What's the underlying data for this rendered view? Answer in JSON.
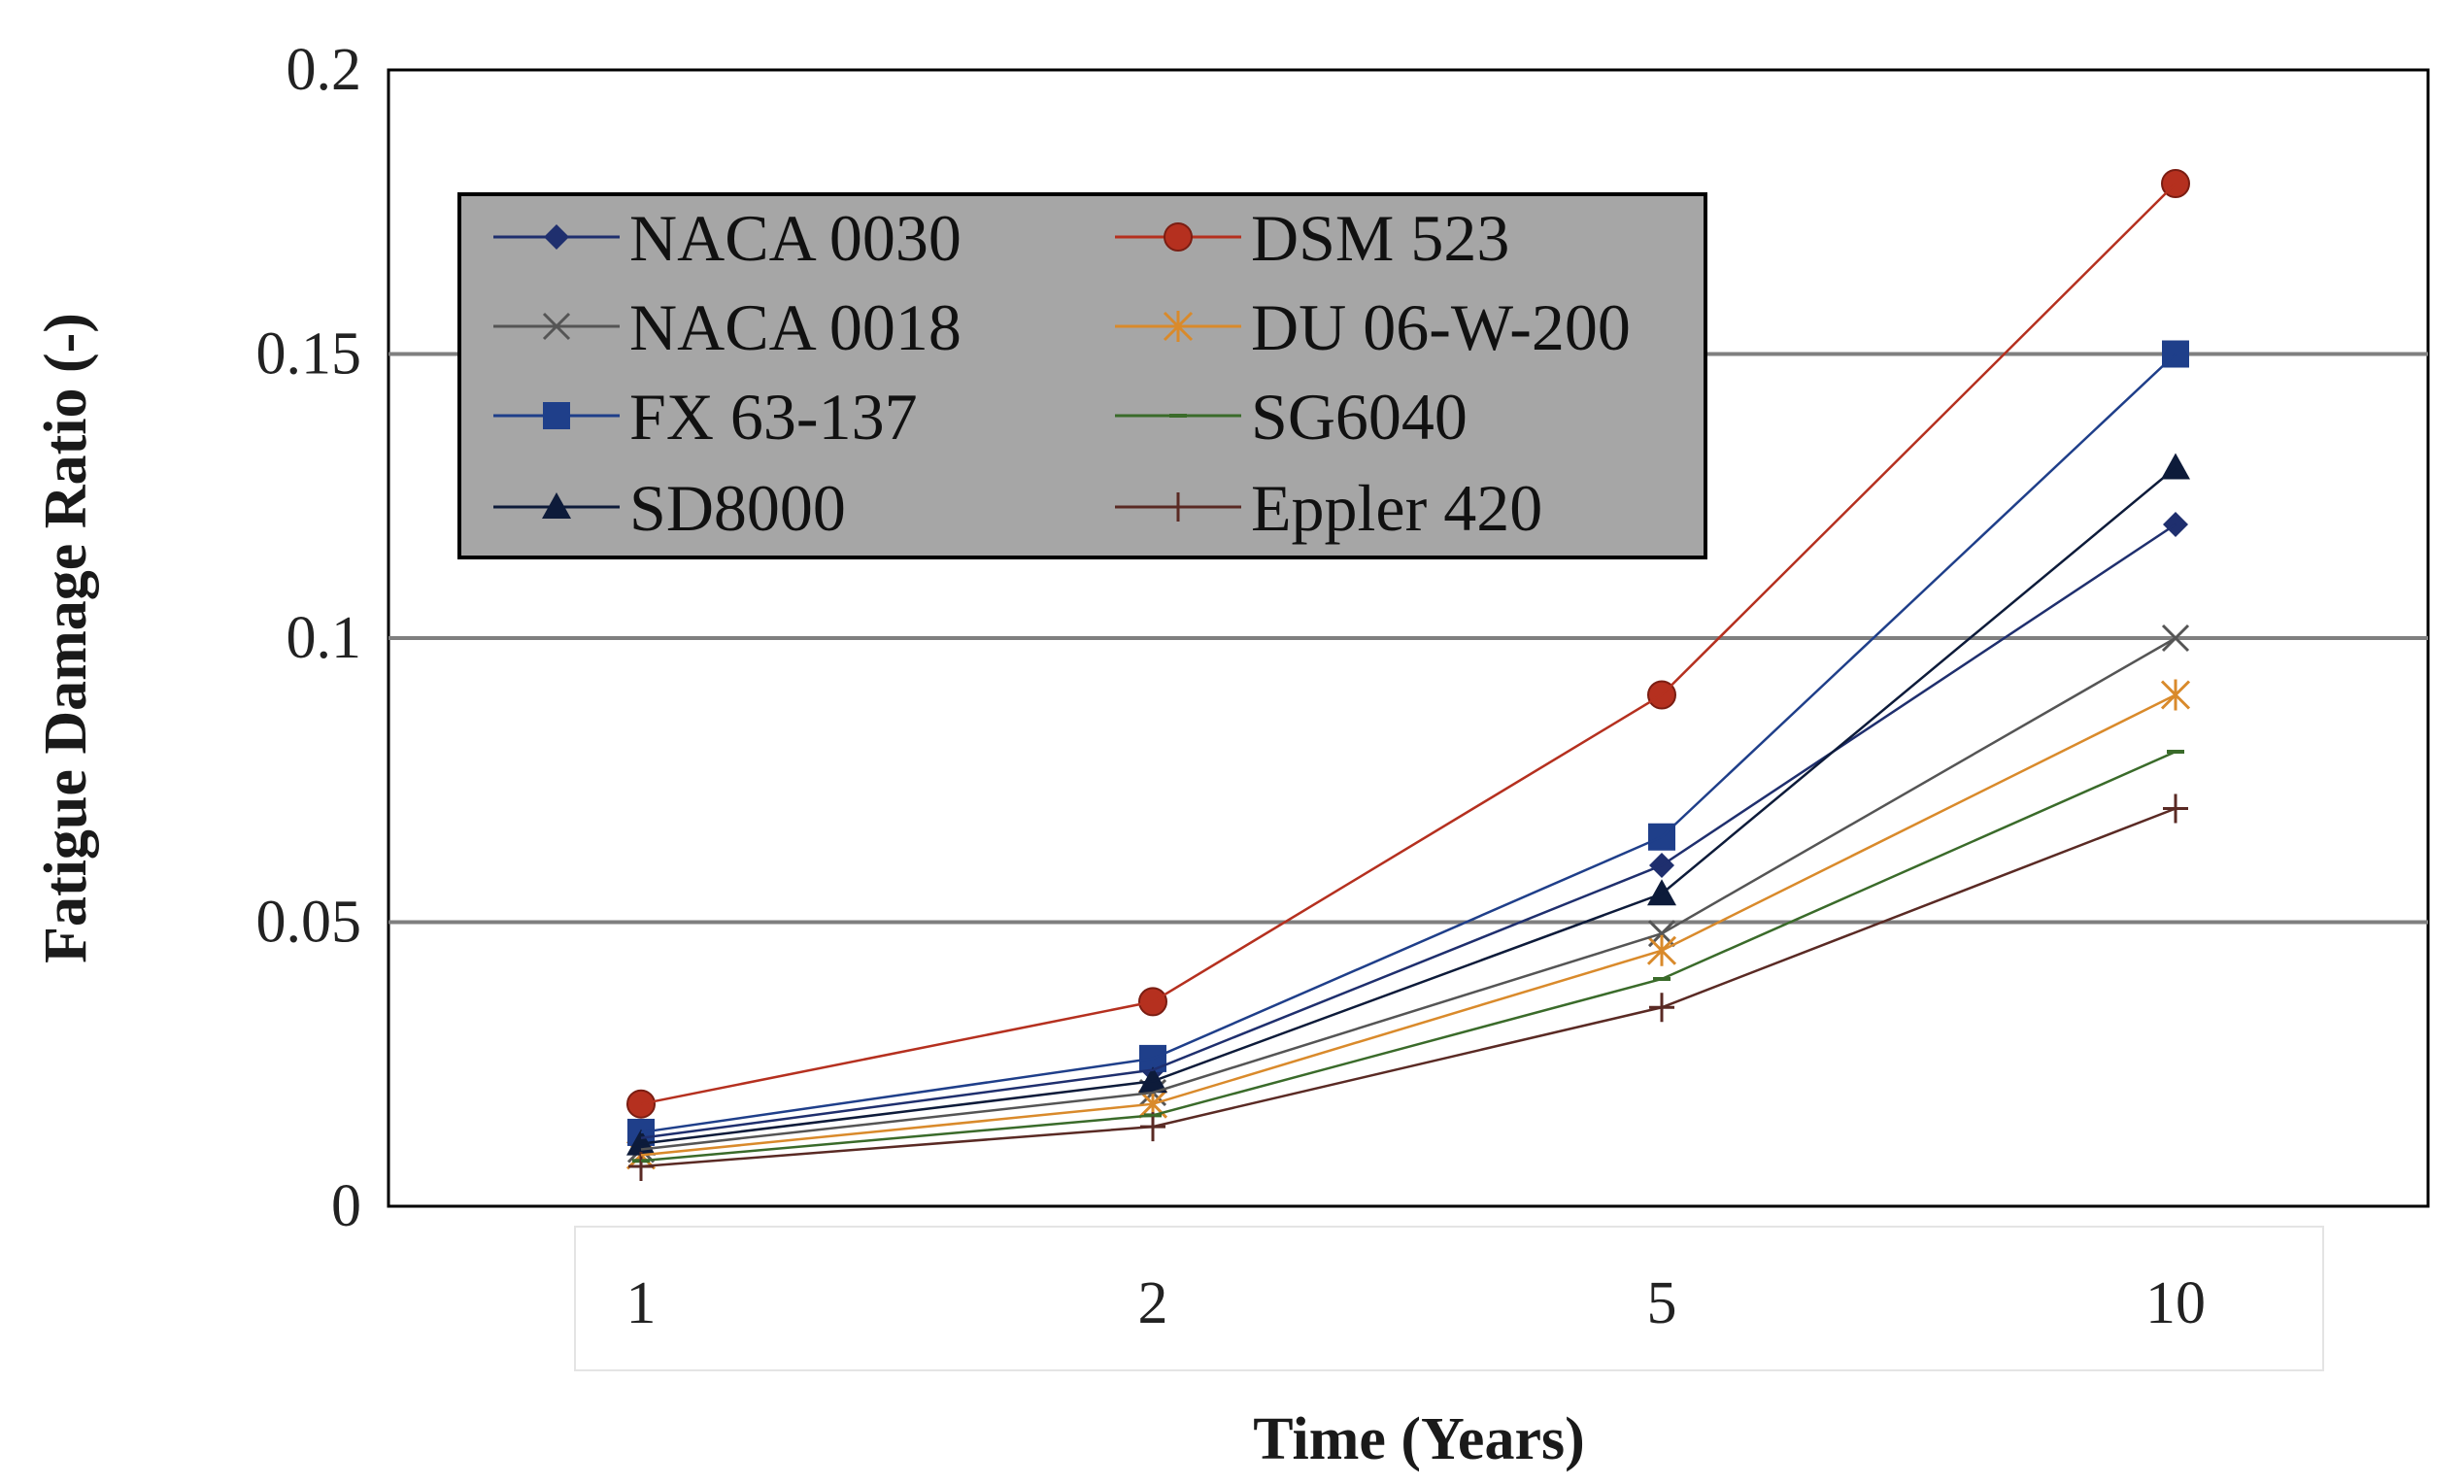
{
  "chart_data": {
    "type": "line",
    "title": "",
    "xlabel": "Time (Years)",
    "ylabel": "Fatigue Damage Ratio (-)",
    "categories": [
      "1",
      "2",
      "5",
      "10"
    ],
    "ylim": [
      0,
      0.2
    ],
    "yticks": [
      "0",
      "0.05",
      "0.1",
      "0.15",
      "0.2"
    ],
    "grid": "horizontal",
    "legend_position": "top-left",
    "series": [
      {
        "name": "NACA 0030",
        "marker": "diamond",
        "color": "#1f2f6e",
        "values": [
          0.012,
          0.024,
          0.06,
          0.12
        ]
      },
      {
        "name": "DSM 523",
        "marker": "circle",
        "color": "#b5301f",
        "values": [
          0.018,
          0.036,
          0.09,
          0.18
        ]
      },
      {
        "name": "NACA 0018",
        "marker": "x",
        "color": "#555555",
        "values": [
          0.01,
          0.02,
          0.048,
          0.1
        ]
      },
      {
        "name": "DU 06-W-200",
        "marker": "asterisk",
        "color": "#d98a2b",
        "values": [
          0.009,
          0.018,
          0.045,
          0.09
        ]
      },
      {
        "name": "FX 63-137",
        "marker": "square",
        "color": "#1f3f8a",
        "values": [
          0.013,
          0.026,
          0.065,
          0.15
        ]
      },
      {
        "name": "SG6040",
        "marker": "dash",
        "color": "#3a6b2a",
        "values": [
          0.008,
          0.016,
          0.04,
          0.08
        ]
      },
      {
        "name": "SD8000",
        "marker": "triangle",
        "color": "#0d1b3a",
        "values": [
          0.011,
          0.022,
          0.055,
          0.13
        ]
      },
      {
        "name": "Eppler 420",
        "marker": "plus",
        "color": "#5a2a24",
        "values": [
          0.007,
          0.014,
          0.035,
          0.07
        ]
      }
    ]
  }
}
